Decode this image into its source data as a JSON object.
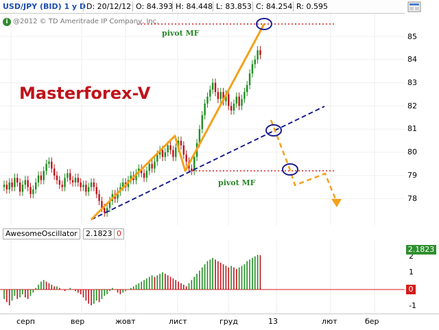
{
  "infobar": {
    "symbol": "USD/JPY (BID) 1 y D",
    "date": "D: 20/12/12",
    "open": "O: 84.393",
    "high": "H: 84.448",
    "low": "L: 83.853",
    "close": "C: 84.254",
    "range": "R: 0.595"
  },
  "icons": {
    "settings": "settings-panel-icon",
    "info": "info-badge-icon"
  },
  "copyright": "@2012 © TD Ameritrade IP Company, Inc.",
  "brand": "Masterforex-V",
  "pivots": [
    "pivot MF",
    "pivot MF"
  ],
  "price_axis": {
    "ticks": [
      "85",
      "84",
      "83",
      "82",
      "81",
      "80",
      "79",
      "78"
    ]
  },
  "indicator": {
    "name": "AwesomeOscillator",
    "value": "2.1823",
    "zero_flag": "0",
    "axis_ticks": [
      "2",
      "1",
      "0",
      "-1"
    ],
    "tag_value": "2.1823",
    "zero_tag": "0"
  },
  "time_axis": [
    "серп",
    "вер",
    "жовт",
    "лист",
    "груд",
    "13",
    "лют",
    "бер"
  ],
  "colors": {
    "up_candle": "#1e8f1e",
    "down_candle": "#c0131b",
    "trend_orange": "#f4a11a",
    "trend_blue": "#1c1f8f",
    "pivot_dotted": "#d42222",
    "brand": "#c0131b"
  },
  "chart_data": {
    "type": "candlestick",
    "title": "USD/JPY (BID) 1 y D",
    "ylim": [
      77,
      86
    ],
    "x_labels": [
      "серп",
      "вер",
      "жовт",
      "лист",
      "груд",
      "13",
      "лют",
      "бер"
    ],
    "closes": [
      78.6,
      78.4,
      78.7,
      78.5,
      78.9,
      78.7,
      78.3,
      78.6,
      78.8,
      78.5,
      78.2,
      78.4,
      78.7,
      79.0,
      78.8,
      79.2,
      79.5,
      79.6,
      79.3,
      79.0,
      78.8,
      78.6,
      78.5,
      78.9,
      79.1,
      78.8,
      78.7,
      78.9,
      78.7,
      78.5,
      78.6,
      78.3,
      78.5,
      78.7,
      78.5,
      78.2,
      77.9,
      77.6,
      77.4,
      77.6,
      77.9,
      78.2,
      78.0,
      78.3,
      78.5,
      78.7,
      78.5,
      78.8,
      79.0,
      78.8,
      79.1,
      79.3,
      79.1,
      78.9,
      79.2,
      79.5,
      79.3,
      79.6,
      79.9,
      80.1,
      79.8,
      80.0,
      80.3,
      80.1,
      79.8,
      80.2,
      80.5,
      80.3,
      79.9,
      79.6,
      79.3,
      79.2,
      79.8,
      80.4,
      81.0,
      81.6,
      82.1,
      82.4,
      82.7,
      83.0,
      82.6,
      82.3,
      82.6,
      82.2,
      82.5,
      82.0,
      81.8,
      82.1,
      82.4,
      82.0,
      82.3,
      82.6,
      82.9,
      83.4,
      83.8,
      84.0,
      84.4,
      84.2
    ],
    "awesome_oscillator": [
      -0.6,
      -0.8,
      -1.0,
      -0.7,
      -0.4,
      -0.6,
      -0.5,
      -0.3,
      -0.5,
      -0.6,
      -0.4,
      -0.2,
      0.1,
      0.3,
      0.5,
      0.6,
      0.5,
      0.4,
      0.3,
      0.2,
      0.2,
      0.1,
      0.0,
      -0.1,
      0.0,
      0.1,
      0.0,
      -0.1,
      -0.2,
      -0.3,
      -0.5,
      -0.7,
      -0.9,
      -1.0,
      -0.9,
      -0.7,
      -0.8,
      -0.6,
      -0.4,
      -0.3,
      -0.1,
      0.1,
      0.0,
      -0.2,
      -0.3,
      -0.2,
      -0.1,
      0.0,
      0.1,
      0.2,
      0.3,
      0.4,
      0.5,
      0.6,
      0.7,
      0.8,
      0.9,
      0.8,
      0.9,
      1.0,
      1.1,
      1.0,
      0.9,
      0.8,
      0.7,
      0.6,
      0.5,
      0.4,
      0.3,
      0.2,
      0.4,
      0.6,
      0.8,
      1.0,
      1.2,
      1.4,
      1.6,
      1.8,
      1.9,
      2.0,
      1.9,
      1.8,
      1.7,
      1.6,
      1.5,
      1.4,
      1.5,
      1.4,
      1.3,
      1.4,
      1.5,
      1.6,
      1.8,
      1.9,
      2.0,
      2.1,
      2.2,
      2.18
    ]
  }
}
